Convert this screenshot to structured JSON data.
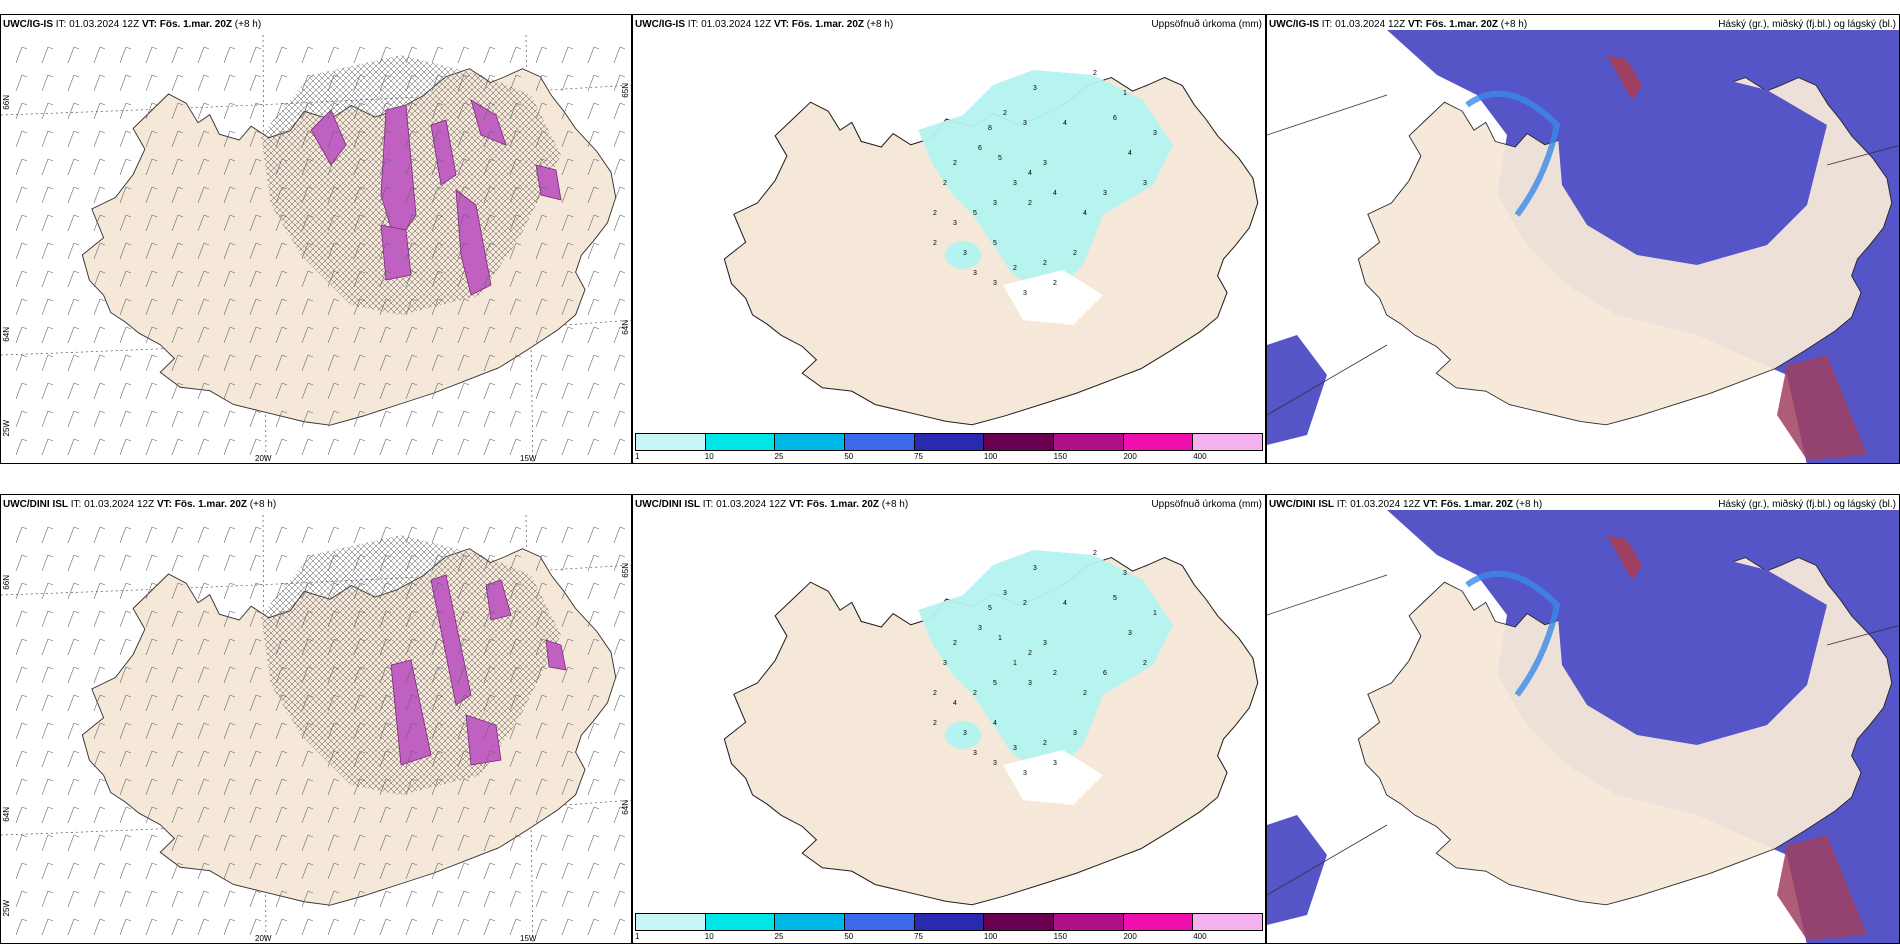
{
  "rows": [
    {
      "model": "UWC/IG-IS",
      "it_label": "IT:",
      "it_value": "01.03.2024 12Z",
      "vt_label": "VT:",
      "vt_value": "Fös. 1.mar. 20Z",
      "offset": "(+8 h)",
      "precip_title": "Uppsöfnuð úrkoma (mm)",
      "cloud_title": "Háský (gr.), miðský (fj.bl.) og lágský (bl.)",
      "lon_labels": [
        "20W",
        "15W"
      ],
      "lat_labels": [
        "66N",
        "64N",
        "25W"
      ],
      "lat_labels_right": [
        "65N",
        "64N"
      ],
      "precip_values": [
        "2",
        "3",
        "4",
        "6",
        "3",
        "2",
        "8",
        "6",
        "5",
        "3",
        "4",
        "3",
        "4",
        "2",
        "4",
        "3",
        "5",
        "3",
        "2",
        "3",
        "5",
        "2",
        "2",
        "2",
        "3",
        "4",
        "3",
        "3",
        "1",
        "2",
        "2",
        "2",
        "3",
        "3",
        "3",
        "2"
      ]
    },
    {
      "model": "UWC/DINI ISL",
      "it_label": "IT:",
      "it_value": "01.03.2024 12Z",
      "vt_label": "VT:",
      "vt_value": "Fös. 1.mar. 20Z",
      "offset": "(+8 h)",
      "precip_title": "Uppsöfnuð úrkoma (mm)",
      "cloud_title": "Háský (gr.), miðský (fj.bl.) og lágský (bl.)",
      "lon_labels": [
        "20W",
        "15W"
      ],
      "lat_labels": [
        "66N",
        "64N",
        "25W"
      ],
      "lat_labels_right": [
        "65N",
        "64N"
      ],
      "precip_values": [
        "2",
        "3",
        "4",
        "5",
        "2",
        "3",
        "5",
        "3",
        "1",
        "1",
        "2",
        "3",
        "2",
        "3",
        "2",
        "5",
        "2",
        "4",
        "2",
        "3",
        "4",
        "3",
        "2",
        "3",
        "6",
        "3",
        "2",
        "1",
        "3",
        "2",
        "3",
        "2",
        "3",
        "3",
        "3",
        "3"
      ]
    }
  ],
  "colorbar": {
    "labels": [
      "1",
      "10",
      "25",
      "50",
      "75",
      "100",
      "150",
      "200",
      "400"
    ],
    "colors": [
      "#c8f7f7",
      "#00e5e5",
      "#00b8e8",
      "#3a6ae8",
      "#2a2ab0",
      "#6b0050",
      "#b0108a",
      "#f010b0",
      "#f5b0f0"
    ]
  },
  "colors": {
    "land": "#f6e8d9",
    "precip_light": "#b3f3f0",
    "snow_magenta": "#c060c0",
    "cloud_high": "#5555c8",
    "cloud_mid": "#3a8ae8",
    "cloud_low": "#a04060"
  }
}
